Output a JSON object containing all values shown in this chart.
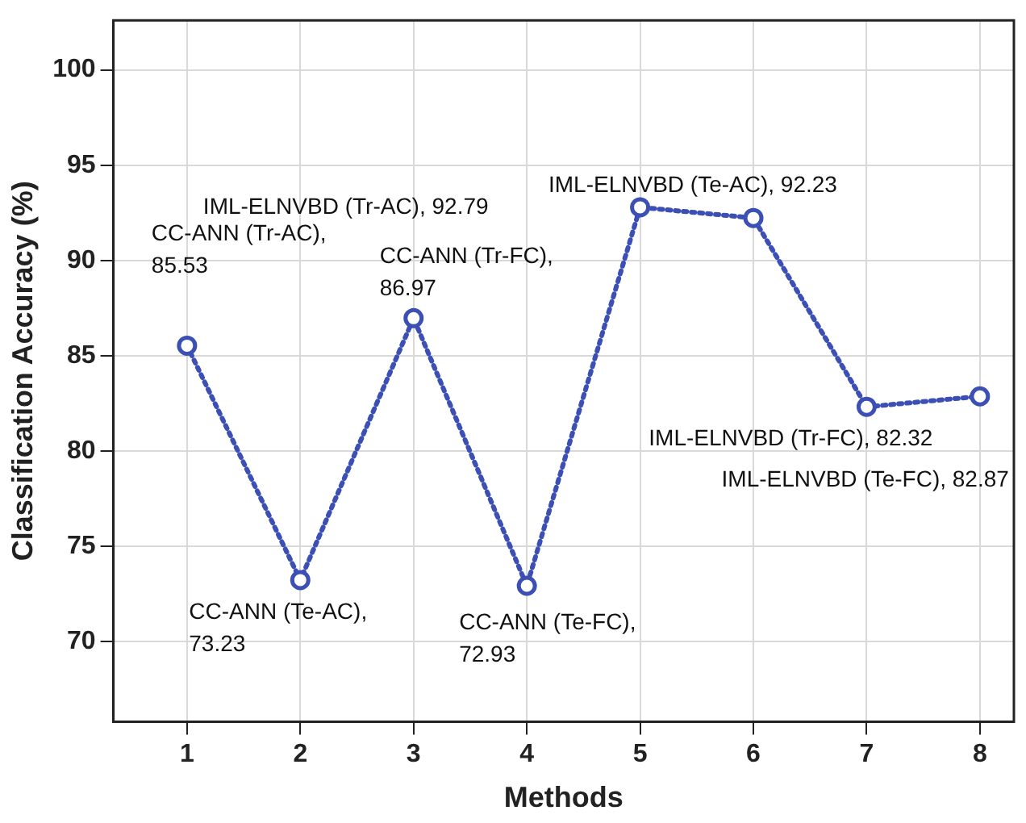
{
  "chart_data": {
    "type": "line",
    "xlabel": "Methods",
    "ylabel": "Classification Accuracy (%)",
    "x": [
      1,
      2,
      3,
      4,
      5,
      6,
      7,
      8
    ],
    "series": [
      {
        "color": "#3c4fb4",
        "values": [
          85.53,
          73.23,
          86.97,
          72.93,
          92.79,
          92.23,
          82.32,
          82.87
        ]
      }
    ],
    "xlim": [
      0.35,
      8.3
    ],
    "xticks": [
      1,
      2,
      3,
      4,
      5,
      6,
      7,
      8
    ],
    "ylim": [
      65.8,
      102.6
    ],
    "yticks": [
      70,
      75,
      80,
      85,
      90,
      95,
      100
    ],
    "grid": true,
    "legend": false,
    "marker": "circle",
    "line_style": "dotted",
    "annotations": [
      "CC-ANN (Tr-AC),\n85.53",
      "CC-ANN (Te-AC),\n73.23",
      "CC-ANN (Tr-FC),\n86.97",
      "CC-ANN (Te-FC),\n72.93",
      "IML-ELNVBD (Tr-AC), 92.79",
      "IML-ELNVBD (Te-AC), 92.23",
      "IML-ELNVBD (Tr-FC), 82.32",
      "IML-ELNVBD (Te-FC), 82.87"
    ]
  }
}
